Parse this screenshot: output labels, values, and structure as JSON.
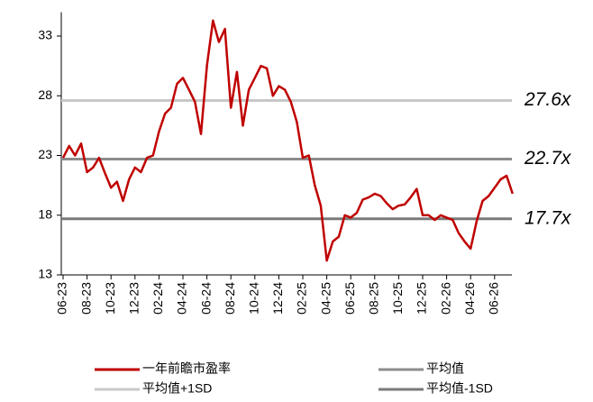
{
  "chart_data": {
    "type": "line",
    "categories": [
      "06-23",
      null,
      null,
      null,
      "08-23",
      null,
      null,
      null,
      "10-23",
      null,
      null,
      null,
      "12-23",
      null,
      null,
      null,
      "02-24",
      null,
      null,
      null,
      "04-24",
      null,
      null,
      null,
      "06-24",
      null,
      null,
      null,
      "08-24",
      null,
      null,
      null,
      "10-24",
      null,
      null,
      null,
      "12-24",
      null,
      null,
      null,
      "02-25",
      null,
      null,
      null,
      "04-25",
      null,
      null,
      null,
      "06-25",
      null,
      null,
      null,
      "08-25",
      null,
      null,
      null,
      "10-25",
      null,
      null,
      null,
      "12-25",
      null,
      null,
      null,
      "02-26",
      null,
      null,
      null,
      "04-26",
      null,
      null,
      null,
      "06-26",
      null,
      null,
      null
    ],
    "series": [
      {
        "name": "一年前瞻市盈率",
        "color": "#c00000",
        "values": [
          22.8,
          23.8,
          23.0,
          24.0,
          21.6,
          22.0,
          22.8,
          21.5,
          20.3,
          20.8,
          19.2,
          21.0,
          22.0,
          21.6,
          22.8,
          23.0,
          25.0,
          26.5,
          27.0,
          29.0,
          29.5,
          28.5,
          27.5,
          24.8,
          30.5,
          34.3,
          32.5,
          33.6,
          27.0,
          30.0,
          25.5,
          28.5,
          29.5,
          30.5,
          30.3,
          28.0,
          28.8,
          28.5,
          27.5,
          25.8,
          22.8,
          23.0,
          20.5,
          18.8,
          14.2,
          15.8,
          16.2,
          18.0,
          17.8,
          18.2,
          19.3,
          19.5,
          19.8,
          19.6,
          19.0,
          18.5,
          18.8,
          18.9,
          19.5,
          20.2,
          18.0,
          18.0,
          17.6,
          18.0,
          17.8,
          17.6,
          16.5,
          15.8,
          15.2,
          17.5,
          19.2,
          19.6,
          20.3,
          21.0,
          21.3,
          19.8
        ]
      }
    ],
    "reference_lines": [
      {
        "name": "平均值",
        "color": "#8c8c8c",
        "value": 22.7,
        "value_label": "22.7x"
      },
      {
        "name": "平均值+1SD",
        "color": "#c8c8c8",
        "value": 27.6,
        "value_label": "27.6x"
      },
      {
        "name": "平均值-1SD",
        "color": "#7a7a7a",
        "value": 17.7,
        "value_label": "17.7x"
      }
    ],
    "ylim": [
      13,
      35
    ],
    "yticks": [
      13,
      18,
      23,
      28,
      33
    ]
  }
}
